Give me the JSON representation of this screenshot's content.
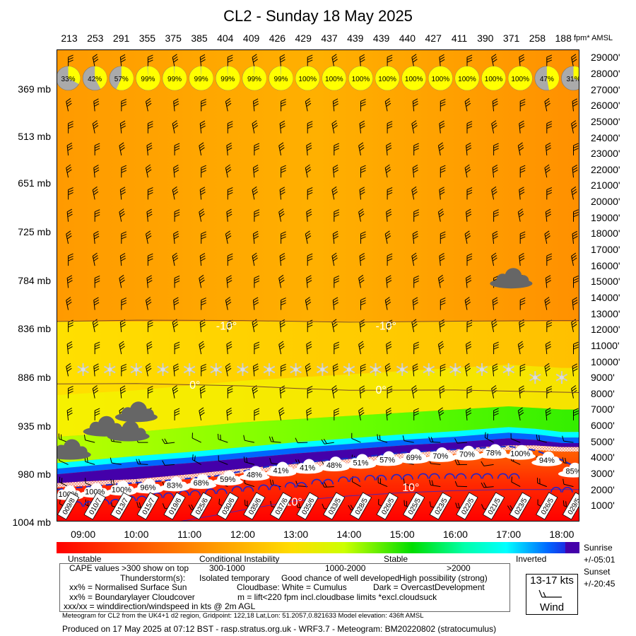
{
  "title": "CL2 - Sunday 18 May 2025",
  "cape_unit": "fpm* AMSL",
  "top_values": [
    "213",
    "253",
    "291",
    "355",
    "375",
    "385",
    "404",
    "409",
    "426",
    "429",
    "437",
    "439",
    "439",
    "440",
    "427",
    "411",
    "390",
    "371",
    "258",
    "188"
  ],
  "cloud_cover": [
    "33%",
    "42%",
    "57%",
    "99%",
    "99%",
    "99%",
    "99%",
    "99%",
    "99%",
    "100%",
    "100%",
    "100%",
    "100%",
    "100%",
    "100%",
    "100%",
    "100%",
    "100%",
    "47%",
    "31%"
  ],
  "cloudbase_pct": [
    "100%",
    "100%",
    "100%",
    "96%",
    "83%",
    "68%",
    "59%",
    "48%",
    "41%",
    "41%",
    "48%",
    "51%",
    "57%",
    "69%",
    "70%",
    "70%",
    "78%",
    "100%",
    "94%",
    "85%"
  ],
  "surface_wind": [
    "009/8",
    "010/7",
    "013/7",
    "015/7",
    "019/6",
    "025/6",
    "030/6",
    "035/6",
    "037/6",
    "035/6",
    "033/5",
    "028/5",
    "026/5",
    "025/5",
    "023/5",
    "022/5",
    "021/5",
    "023/5",
    "026/5",
    "029/5"
  ],
  "chart_data": {
    "type": "heatmap",
    "title": "CL2 - Sunday 18 May 2025",
    "x": [
      "09:00",
      "10:00",
      "11:00",
      "12:00",
      "13:00",
      "14:00",
      "15:00",
      "16:00",
      "17:00",
      "18:00"
    ],
    "x_range": [
      "08:30",
      "18:20"
    ],
    "y_left": [
      "369 mb",
      "513 mb",
      "651 mb",
      "725 mb",
      "784 mb",
      "836 mb",
      "886 mb",
      "935 mb",
      "980 mb",
      "1004 mb"
    ],
    "y_right": [
      "29000'",
      "28000'",
      "27000'",
      "26000'",
      "25000'",
      "24000'",
      "23000'",
      "22000'",
      "21000'",
      "20000'",
      "19000'",
      "18000'",
      "17000'",
      "16000'",
      "15000'",
      "14000'",
      "13000'",
      "12000'",
      "11000'",
      "10000'",
      "9000'",
      "8000'",
      "7000'",
      "6000'",
      "5000'",
      "4000'",
      "3000'",
      "2000'",
      "1000'"
    ],
    "y_range_ft": [
      0,
      29500
    ],
    "isotherms": [
      {
        "label": "-10°",
        "pts": [
          [
            8.5,
            12500
          ],
          [
            10,
            12580
          ],
          [
            12,
            12560
          ],
          [
            14,
            12460
          ],
          [
            16,
            12520
          ],
          [
            18,
            12560
          ],
          [
            18.33,
            12560
          ]
        ]
      },
      {
        "label": "0°",
        "pts": [
          [
            8.5,
            8600
          ],
          [
            10,
            8620
          ],
          [
            12,
            8480
          ],
          [
            13,
            8320
          ],
          [
            14,
            8200
          ],
          [
            16,
            8220
          ],
          [
            18,
            8080
          ],
          [
            18.33,
            8060
          ]
        ]
      },
      {
        "label": "10°",
        "pts": [
          [
            10.8,
            0
          ],
          [
            11.5,
            400
          ],
          [
            12,
            720
          ],
          [
            13,
            1300
          ],
          [
            14,
            1600
          ],
          [
            15,
            1800
          ],
          [
            16,
            1930
          ],
          [
            17,
            2000
          ],
          [
            18.33,
            2000
          ]
        ]
      }
    ],
    "temp_labels": [
      {
        "text": "-10°",
        "t": 11.5,
        "ft": 12000
      },
      {
        "text": "-10°",
        "t": 14.5,
        "ft": 12000
      },
      {
        "text": "0°",
        "t": 11.0,
        "ft": 8300
      },
      {
        "text": "0°",
        "t": 14.5,
        "ft": 8000
      },
      {
        "text": "10°",
        "t": 15.0,
        "ft": 1900
      },
      {
        "text": "10°",
        "t": 12.8,
        "ft": 1000
      }
    ],
    "inversion_band": {
      "times": [
        8.5,
        9,
        10,
        11,
        12,
        13,
        14,
        15,
        16,
        16.5,
        17,
        17.5,
        18,
        18.33
      ],
      "base_ft": [
        2400,
        2500,
        2650,
        2950,
        3300,
        3600,
        3900,
        4250,
        4500,
        4650,
        4750,
        4750,
        4650,
        4650
      ],
      "top_ft": [
        3650,
        3800,
        4100,
        4350,
        4650,
        4950,
        5200,
        5450,
        5650,
        5780,
        5900,
        5800,
        5600,
        5600
      ]
    },
    "stable_top_ft": [
      5300,
      5400,
      5600,
      5900,
      6200,
      6400,
      6600,
      6800,
      7000,
      7100,
      7200,
      7100,
      7000,
      7000
    ],
    "cloudbase_dashed_ft": [
      [
        8.5,
        2000
      ],
      [
        9.5,
        2300
      ],
      [
        10.5,
        2550
      ],
      [
        11.5,
        2850
      ],
      [
        12,
        3150
      ],
      [
        12.5,
        3450
      ],
      [
        13,
        3650
      ],
      [
        14,
        3950
      ],
      [
        15,
        4300
      ],
      [
        16,
        4500
      ],
      [
        17,
        4700
      ],
      [
        17.5,
        4450
      ],
      [
        18,
        3850
      ],
      [
        18.33,
        3300
      ]
    ],
    "thermal_arcs": {
      "times": [
        9,
        9.5,
        10,
        10.5,
        11,
        11.5,
        12,
        12.5,
        13,
        13.5,
        14,
        14.5,
        15,
        15.5,
        16,
        16.5,
        17,
        17.5,
        18
      ],
      "ft": [
        1100,
        1250,
        1450,
        1650,
        1800,
        1900,
        2050,
        2150,
        2300,
        2500,
        2650,
        2750,
        2800,
        2850,
        2850,
        2850,
        2850,
        0,
        2000
      ],
      "show": [
        true,
        true,
        true,
        true,
        true,
        true,
        true,
        true,
        true,
        true,
        true,
        true,
        true,
        true,
        true,
        true,
        true,
        false,
        true
      ]
    },
    "snow_flakes": {
      "times": [
        9,
        9.5,
        10,
        10.5,
        11,
        11.5,
        12,
        12.5,
        13,
        13.5,
        14,
        14.5,
        15,
        15.5,
        16,
        16.5,
        17,
        17.5,
        18
      ],
      "ft": [
        9500,
        9500,
        9500,
        9500,
        9500,
        9500,
        9500,
        9500,
        9500,
        9500,
        9500,
        9500,
        9500,
        9500,
        9500,
        9500,
        9500,
        9000,
        9000
      ]
    },
    "storm_clouds": [
      {
        "t": 8.75,
        "ft": 4350
      },
      {
        "t": 9.4,
        "ft": 5800
      },
      {
        "t": 9.85,
        "ft": 5500
      },
      {
        "t": 10.0,
        "ft": 6700
      },
      {
        "t": 17.05,
        "ft": 15050
      }
    ],
    "colorbar_labels": [
      "Unstable",
      "Conditional Instability",
      "Stable",
      "Inverted"
    ]
  },
  "legend": {
    "colorbar_labels": [
      "Unstable",
      "Conditional Instability",
      "Stable",
      "Inverted"
    ],
    "sunrise_label": "Sunrise",
    "sunrise_value": "+/-05:01",
    "sunset_label": "Sunset",
    "sunset_value": "+/-20:45",
    "cape_line": "CAPE values >300 show on top",
    "cape_ranges": [
      "300-1000",
      "1000-2000",
      ">2000"
    ],
    "storm_label": "Thunderstorm(s):",
    "storm_levels": [
      "Isolated temporary",
      "Good chance of well developed",
      "High possibility (strong)"
    ],
    "sun_line": "xx% = Normalised Surface Sun",
    "cloudbase_line": "Cloudbase: White = Cumulus",
    "dark_line": "Dark = OvercastDevelopment",
    "blcloud_line": "xx% = Boundarylayer Cloudcover",
    "lift_line": "m = lift<220 fpm incl.cloudbase limits *excl.cloudsuck",
    "wind_line": "xxx/xx = winddirection/windspeed in kts @ 2m AGL",
    "wind_kts": "13-17 kts",
    "wind_word": "Wind",
    "footnote": "Meteogram for CL2 from the UK4+1 d2 region, Gridpoint: 122,18 Lat,Lon: 51.2057,0.821633 Model elevation: 436ft AMSL",
    "produced": "Produced on 17 May 2025 at 07:12 BST - rasp.stratus.org.uk - WRF3.7 - Meteogram: BM20220802 (stratocumulus)"
  },
  "colors": {
    "unstable": "#ff0000",
    "conditional": "#ff9900",
    "yellow": "#ffff00",
    "stable": "#00dd00",
    "cyan": "#00ffff",
    "inverted": "#4400aa",
    "dashed_line": "#1a2ecc",
    "arc": "#2222cc",
    "cloud_dark": "#666666"
  }
}
